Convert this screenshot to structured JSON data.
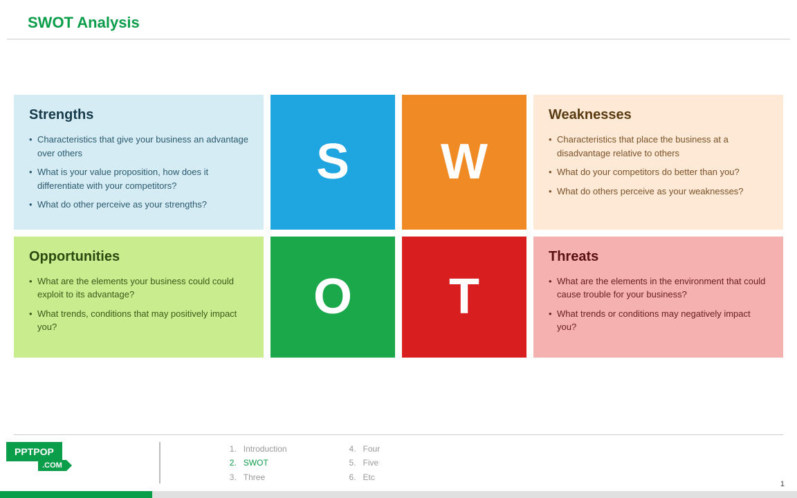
{
  "header": {
    "title": "SWOT Analysis"
  },
  "quadrants": {
    "s": {
      "title": "Strengths",
      "letter": "S",
      "bullets": [
        "Characteristics that give your business an advantage over others",
        "What is your value proposition, how does it differentiate with your competitors?",
        "What do other perceive as your strengths?"
      ],
      "text_bg": "#d6ecf5",
      "letter_bg": "#1fa5e0"
    },
    "w": {
      "title": "Weaknesses",
      "letter": "W",
      "bullets": [
        "Characteristics that place the business at a disadvantage relative to others",
        "What do your competitors do better than you?",
        "What do others perceive as your weaknesses?"
      ],
      "text_bg": "#fde9d6",
      "letter_bg": "#f08a24"
    },
    "o": {
      "title": "Opportunities",
      "letter": "O",
      "bullets": [
        "What are the elements your business could could exploit to its advantage?",
        "What trends, conditions that may positively impact you?"
      ],
      "text_bg": "#c9ec8f",
      "letter_bg": "#1aa84a"
    },
    "t": {
      "title": "Threats",
      "letter": "T",
      "bullets": [
        "What are the elements in the environment that could cause trouble for your business?",
        "What trends or conditions may negatively impact you?"
      ],
      "text_bg": "#f5b0b0",
      "letter_bg": "#d81e1e"
    }
  },
  "footer": {
    "logo_main": "PPTPOP",
    "logo_sub": ".COM",
    "list_a": [
      {
        "n": "1.",
        "label": "Introduction",
        "active": false
      },
      {
        "n": "2.",
        "label": "SWOT",
        "active": true
      },
      {
        "n": "3.",
        "label": "Three",
        "active": false
      }
    ],
    "list_b": [
      {
        "n": "4.",
        "label": "Four"
      },
      {
        "n": "5.",
        "label": "Five"
      },
      {
        "n": "6.",
        "label": "Etc"
      }
    ],
    "page": "1"
  },
  "colors": {
    "accent": "#0a9d4a",
    "divider": "#cccccc"
  }
}
